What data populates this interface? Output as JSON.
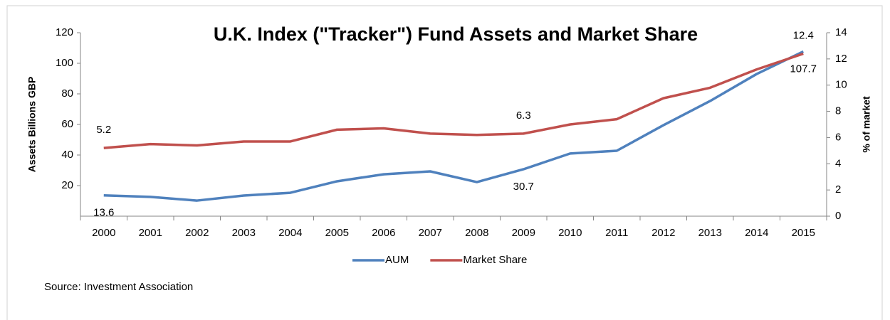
{
  "chart_data": {
    "type": "line",
    "title": "U.K. Index (\"Tracker\") Fund Assets and Market Share",
    "y_label": "Assets Billions GBP",
    "y2_label": "% of market",
    "source": "Source: Investment Association",
    "categories": [
      "2000",
      "2001",
      "2002",
      "2003",
      "2004",
      "2005",
      "2006",
      "2007",
      "2008",
      "2009",
      "2010",
      "2011",
      "2012",
      "2013",
      "2014",
      "2015"
    ],
    "series": [
      {
        "name": "AUM",
        "color": "#4f81bd",
        "axis": "y",
        "label_position": "below",
        "labels_at": [
          0,
          9,
          15
        ],
        "values": [
          13.6,
          12.6,
          10.2,
          13.5,
          15.3,
          22.8,
          27.4,
          29.3,
          22.3,
          30.7,
          41.0,
          42.8,
          59.5,
          75.3,
          93.0,
          107.7
        ]
      },
      {
        "name": "Market Share",
        "color": "#c0504d",
        "axis": "y2",
        "label_position": "above",
        "labels_at": [
          0,
          9,
          15
        ],
        "values": [
          5.2,
          5.5,
          5.4,
          5.7,
          5.7,
          6.6,
          6.7,
          6.3,
          6.2,
          6.3,
          7.0,
          7.4,
          9.0,
          9.8,
          11.2,
          12.4
        ]
      }
    ],
    "ylim": [
      0,
      120
    ],
    "yticks": [
      20,
      40,
      60,
      80,
      100,
      120
    ],
    "y2lim": [
      0,
      14
    ],
    "y2ticks": [
      0,
      2,
      4,
      6,
      8,
      10,
      12,
      14
    ],
    "legend": "bottom",
    "grid": false
  }
}
